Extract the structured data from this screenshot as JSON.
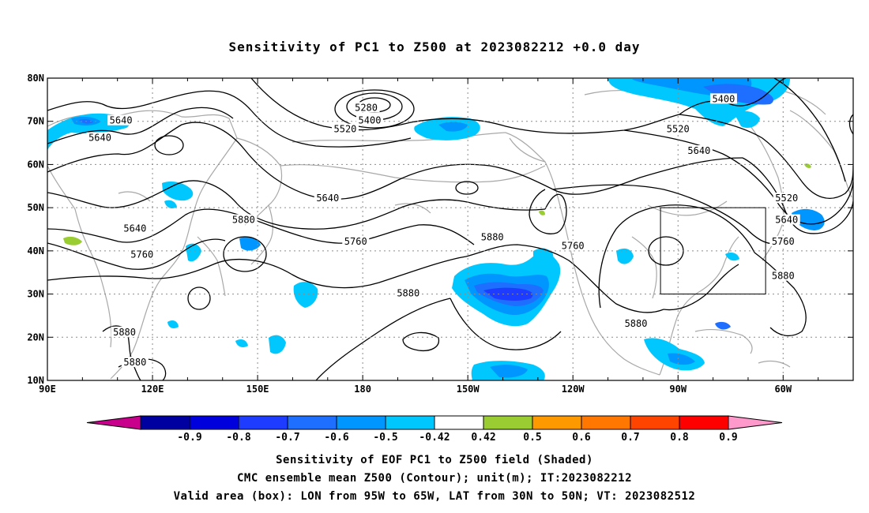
{
  "title": "Sensitivity of PC1 to Z500 at 2023082212 +0.0 day",
  "map": {
    "lat_labels": [
      "80N",
      "70N",
      "60N",
      "50N",
      "40N",
      "30N",
      "20N",
      "10N"
    ],
    "lon_labels": [
      "90E",
      "120E",
      "150E",
      "180",
      "150W",
      "120W",
      "90W",
      "60W"
    ],
    "lon_range_deg": [
      90,
      320
    ],
    "lat_range_deg": [
      10,
      80
    ],
    "valid_box": {
      "lon": [
        265,
        295
      ],
      "lat": [
        30,
        50
      ]
    }
  },
  "contour_labels": [
    {
      "text": "5640",
      "lon": 111,
      "lat": 70
    },
    {
      "text": "5640",
      "lon": 105,
      "lat": 66
    },
    {
      "text": "5280",
      "lon": 181,
      "lat": 73
    },
    {
      "text": "5400",
      "lon": 182,
      "lat": 70
    },
    {
      "text": "5520",
      "lon": 175,
      "lat": 68
    },
    {
      "text": "5400",
      "lon": 283,
      "lat": 75
    },
    {
      "text": "5520",
      "lon": 270,
      "lat": 68
    },
    {
      "text": "5640",
      "lon": 276,
      "lat": 63
    },
    {
      "text": "5640",
      "lon": 170,
      "lat": 52
    },
    {
      "text": "5640",
      "lon": 115,
      "lat": 45
    },
    {
      "text": "5880",
      "lon": 146,
      "lat": 47
    },
    {
      "text": "5760",
      "lon": 178,
      "lat": 42
    },
    {
      "text": "5880",
      "lon": 217,
      "lat": 43
    },
    {
      "text": "5760",
      "lon": 117,
      "lat": 39
    },
    {
      "text": "5760",
      "lon": 240,
      "lat": 41
    },
    {
      "text": "5880",
      "lon": 193,
      "lat": 30
    },
    {
      "text": "5880",
      "lon": 258,
      "lat": 23
    },
    {
      "text": "5520",
      "lon": 301,
      "lat": 52
    },
    {
      "text": "5640",
      "lon": 301,
      "lat": 47
    },
    {
      "text": "5760",
      "lon": 300,
      "lat": 42
    },
    {
      "text": "5880",
      "lon": 300,
      "lat": 34
    },
    {
      "text": "5880",
      "lon": 112,
      "lat": 21
    },
    {
      "text": "5880",
      "lon": 115,
      "lat": 14
    }
  ],
  "shading": {
    "colors": {
      "-0.9": "#0000a0",
      "-0.8": "#0000dc",
      "-0.7": "#1e3cff",
      "-0.6": "#1e6eff",
      "-0.5": "#0096ff",
      "-0.42": "#00c8ff",
      "0.42": "#9acd32",
      "0.5": "#ff9900",
      "0.6": "#ff7700",
      "0.7": "#ff4400",
      "0.8": "#ff0000",
      "0.9": "#ff99cc"
    }
  },
  "colorbar": {
    "labels": [
      "-0.9",
      "-0.8",
      "-0.7",
      "-0.6",
      "-0.5",
      "-0.42",
      "0.42",
      "0.5",
      "0.6",
      "0.7",
      "0.8",
      "0.9"
    ],
    "segments": [
      "#c8008c",
      "#0000a0",
      "#0000dc",
      "#1e3cff",
      "#1e6eff",
      "#0096ff",
      "#00c8ff",
      "#ffffff",
      "#9acd32",
      "#ff9900",
      "#ff7700",
      "#ff4400",
      "#ff0000",
      "#ff99cc"
    ]
  },
  "captions": {
    "line1": "Sensitivity of EOF PC1 to Z500 field (Shaded)",
    "line2": "CMC ensemble mean Z500 (Contour); unit(m); IT:2023082212",
    "line3": "Valid area (box): LON from 95W to 65W, LAT from 30N to 50N; VT: 2023082512"
  }
}
